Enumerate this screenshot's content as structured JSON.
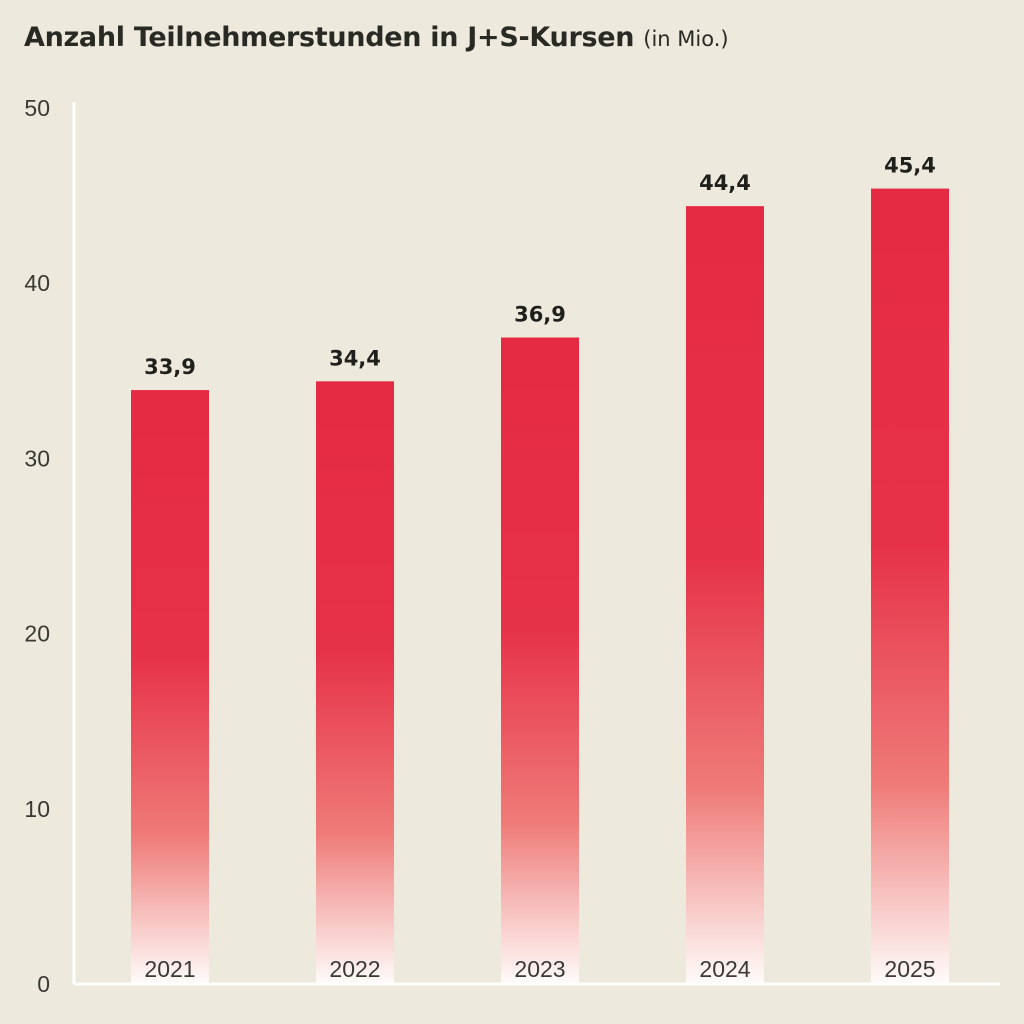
{
  "chart_data": {
    "type": "bar",
    "title": "Anzahl Teilnehmerstunden in J+S-Kursen",
    "subtitle": "(in Mio.)",
    "categories": [
      "2021",
      "2022",
      "2023",
      "2024",
      "2025"
    ],
    "values": [
      33.9,
      34.4,
      36.9,
      44.4,
      45.4
    ],
    "value_labels": [
      "33,9",
      "34,4",
      "36,9",
      "44,4",
      "45,4"
    ],
    "ylim": [
      0,
      50
    ],
    "yticks": [
      "0",
      "10",
      "20",
      "30",
      "40",
      "50"
    ],
    "xlabel": "",
    "ylabel": "",
    "grid": false,
    "colors": {
      "bar_top": "#e52a43",
      "bar_bottom": "#ffffff",
      "axis": "#ffffff",
      "background": "#ede9dc"
    }
  }
}
